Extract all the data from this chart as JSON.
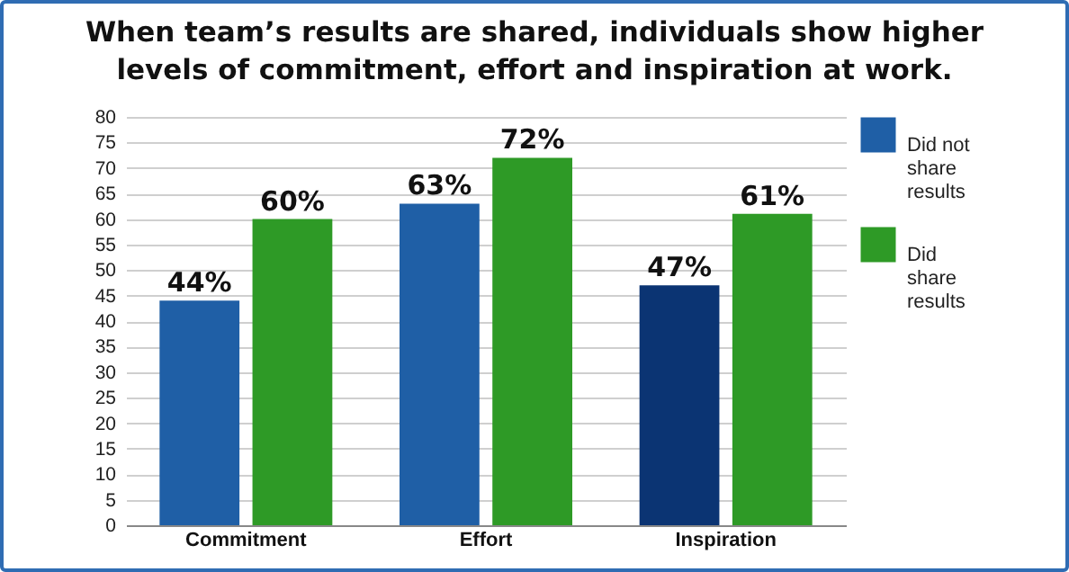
{
  "chart_data": {
    "type": "bar",
    "title": "When team’s results are shared, individuals show higher levels of commitment, effort and inspiration at work.",
    "categories": [
      "Commitment",
      "Effort",
      "Inspiration"
    ],
    "series": [
      {
        "name": "Did not share results",
        "color": "#1f5fa6",
        "colors": [
          "#1f5fa6",
          "#1f5fa6",
          "#0b3473"
        ],
        "values": [
          44,
          63,
          47
        ],
        "value_labels": [
          "44%",
          "63%",
          "47%"
        ]
      },
      {
        "name": "Did share results",
        "color": "#2e9a26",
        "values": [
          60,
          72,
          61
        ],
        "value_labels": [
          "60%",
          "72%",
          "61%"
        ]
      }
    ],
    "ylim": [
      0,
      80
    ],
    "yticks": [
      0,
      5,
      10,
      15,
      20,
      25,
      30,
      35,
      40,
      45,
      50,
      55,
      60,
      65,
      70,
      75,
      80
    ],
    "grid": "y",
    "legend": "right"
  }
}
